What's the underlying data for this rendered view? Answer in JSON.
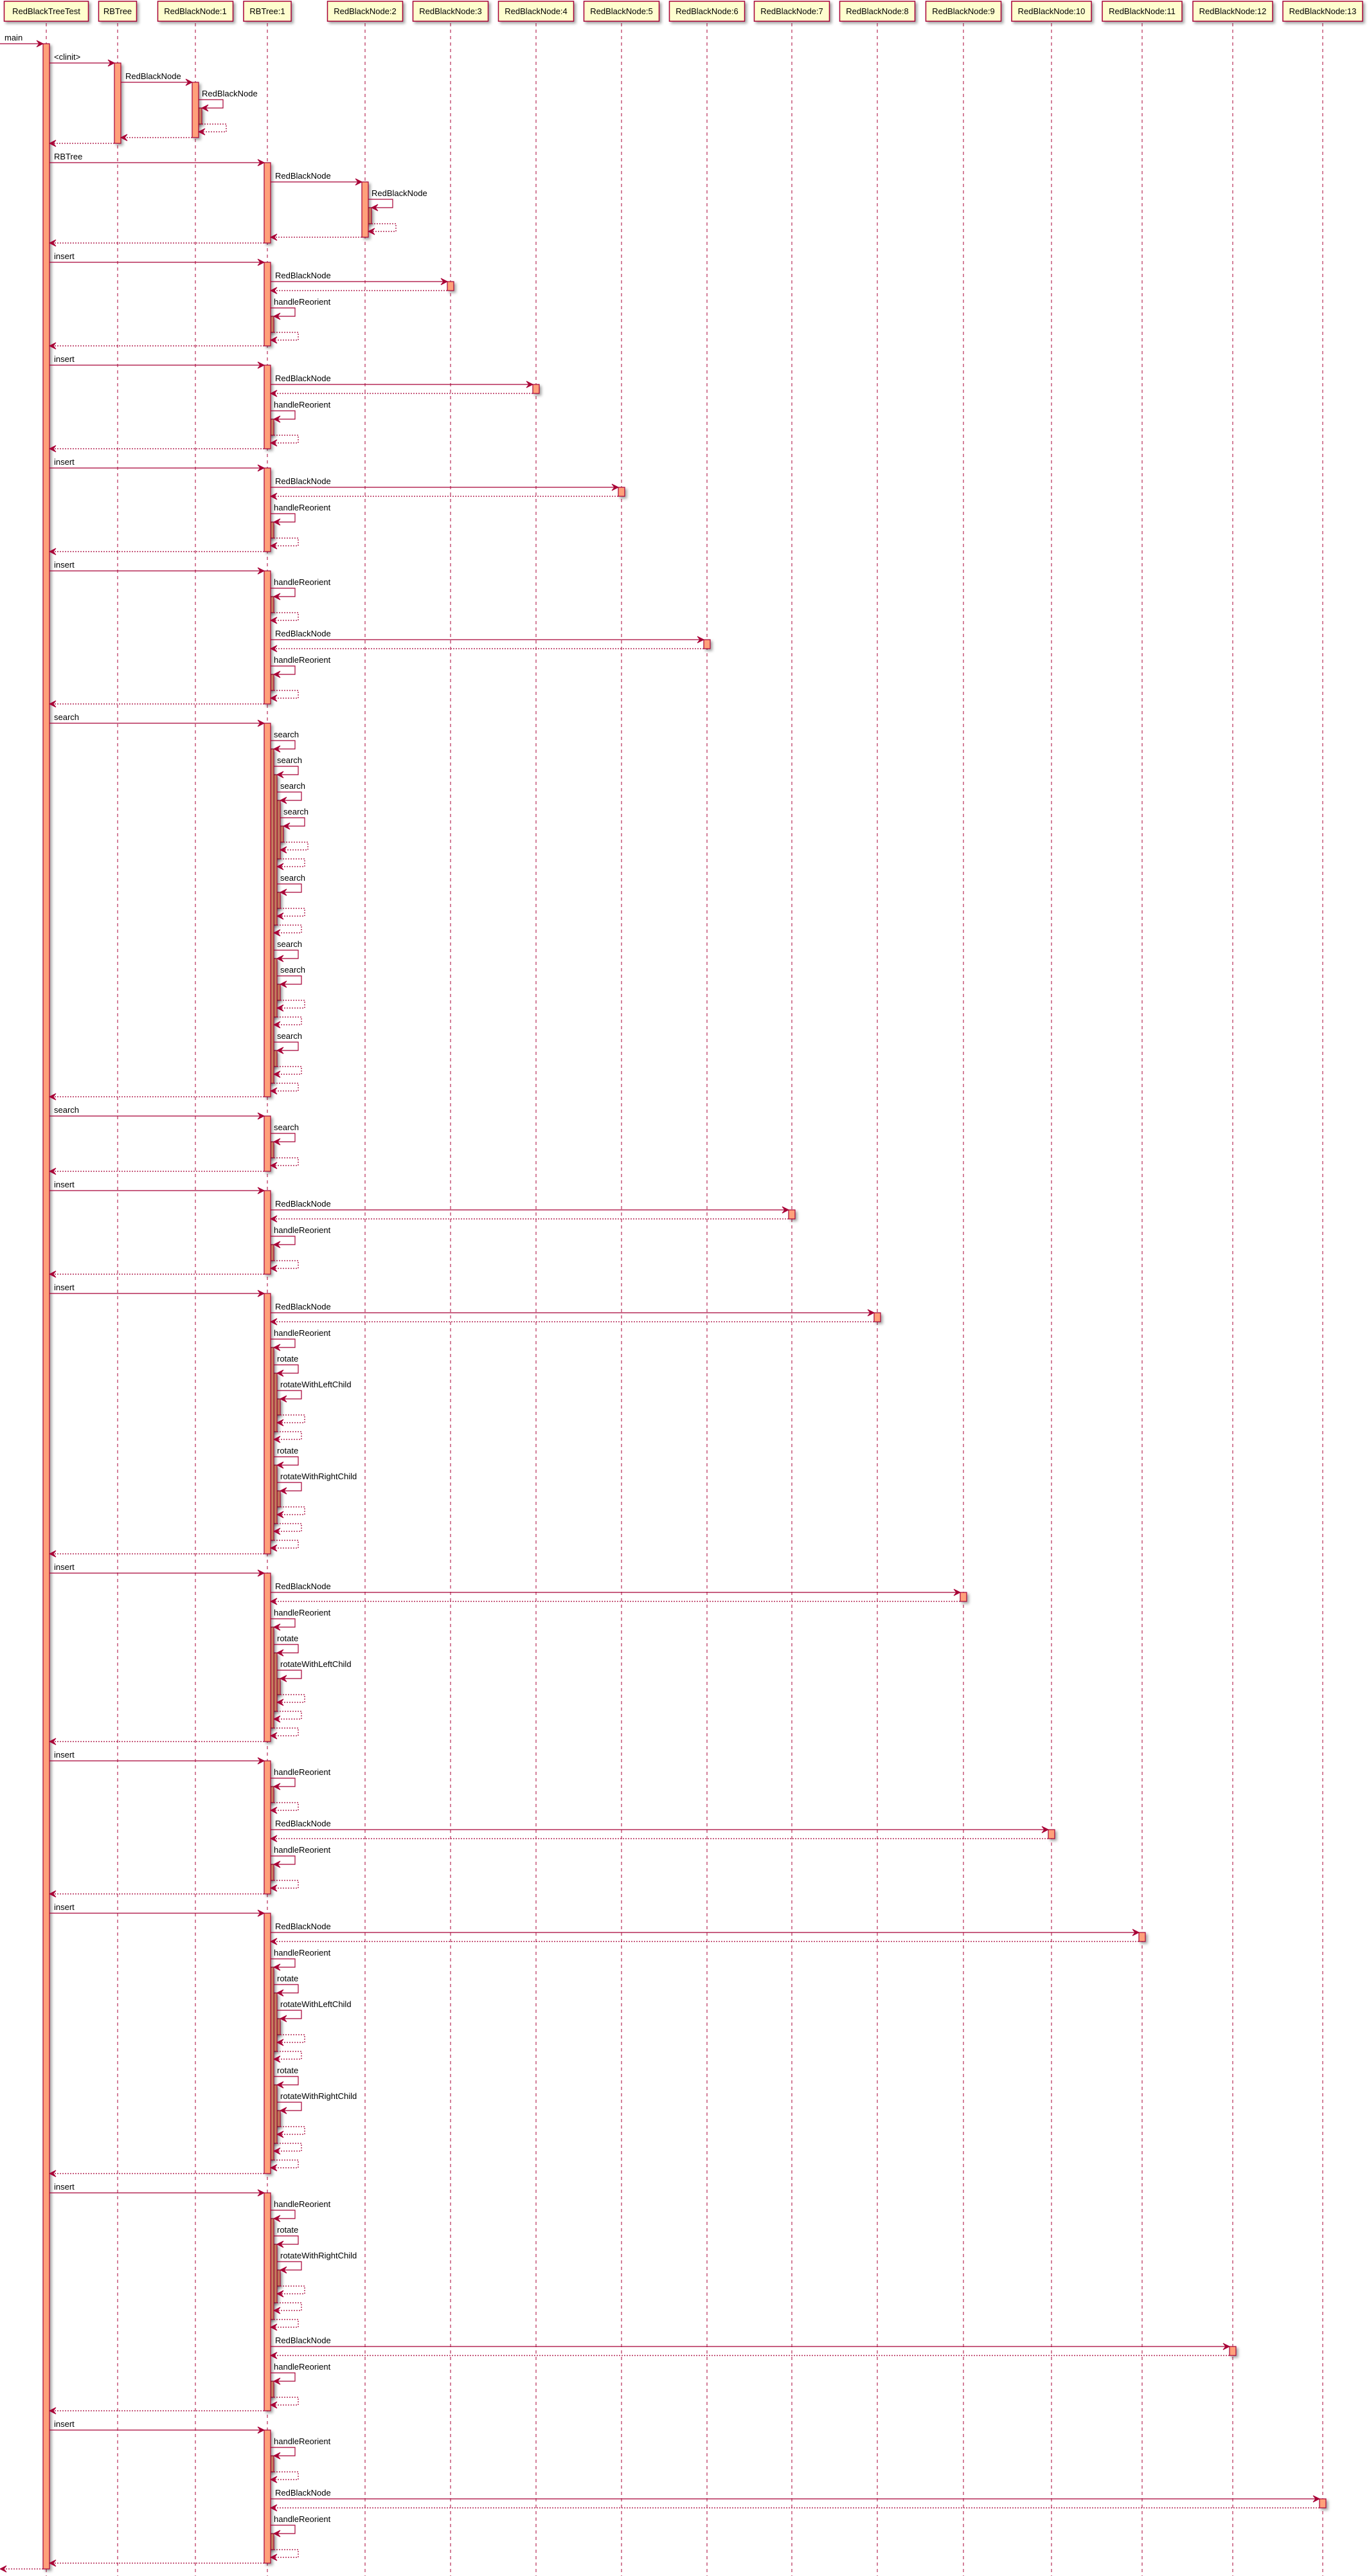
{
  "diagram": {
    "type": "sequence",
    "colors": {
      "line": "#A80036",
      "activation": "#FFA07A",
      "participant_fill": "#FEFECE"
    }
  },
  "participants": [
    "RedBlackTreeTest",
    "RBTree",
    "RedBlackNode:1",
    "RBTree:1",
    "RedBlackNode:2",
    "RedBlackNode:3",
    "RedBlackNode:4",
    "RedBlackNode:5",
    "RedBlackNode:6",
    "RedBlackNode:7",
    "RedBlackNode:8",
    "RedBlackNode:9",
    "RedBlackNode:10",
    "RedBlackNode:11",
    "RedBlackNode:12",
    "RedBlackNode:13"
  ],
  "messages": [
    {
      "f": -1,
      "t": 0,
      "l": "main",
      "c": [
        {
          "f": 0,
          "t": 1,
          "l": "<clinit>",
          "c": [
            {
              "f": 1,
              "t": 2,
              "l": "RedBlackNode",
              "c": [
                {
                  "f": 2,
                  "t": 2,
                  "l": "RedBlackNode",
                  "c": []
                }
              ]
            }
          ]
        },
        {
          "f": 0,
          "t": 3,
          "l": "RBTree",
          "c": [
            {
              "f": 3,
              "t": 4,
              "l": "RedBlackNode",
              "c": [
                {
                  "f": 4,
                  "t": 4,
                  "l": "RedBlackNode",
                  "c": []
                }
              ]
            }
          ]
        },
        {
          "f": 0,
          "t": 3,
          "l": "insert",
          "c": [
            {
              "f": 3,
              "t": 5,
              "l": "RedBlackNode",
              "c": []
            },
            {
              "f": 3,
              "t": 3,
              "l": "handleReorient",
              "c": []
            }
          ]
        },
        {
          "f": 0,
          "t": 3,
          "l": "insert",
          "c": [
            {
              "f": 3,
              "t": 6,
              "l": "RedBlackNode",
              "c": []
            },
            {
              "f": 3,
              "t": 3,
              "l": "handleReorient",
              "c": []
            }
          ]
        },
        {
          "f": 0,
          "t": 3,
          "l": "insert",
          "c": [
            {
              "f": 3,
              "t": 7,
              "l": "RedBlackNode",
              "c": []
            },
            {
              "f": 3,
              "t": 3,
              "l": "handleReorient",
              "c": []
            }
          ]
        },
        {
          "f": 0,
          "t": 3,
          "l": "insert",
          "c": [
            {
              "f": 3,
              "t": 3,
              "l": "handleReorient",
              "c": []
            },
            {
              "f": 3,
              "t": 8,
              "l": "RedBlackNode",
              "c": []
            },
            {
              "f": 3,
              "t": 3,
              "l": "handleReorient",
              "c": []
            }
          ]
        },
        {
          "f": 0,
          "t": 3,
          "l": "search",
          "c": [
            {
              "f": 3,
              "t": 3,
              "l": "search",
              "c": [
                {
                  "f": 3,
                  "t": 3,
                  "l": "search",
                  "c": [
                    {
                      "f": 3,
                      "t": 3,
                      "l": "search",
                      "c": [
                        {
                          "f": 3,
                          "t": 3,
                          "l": "search",
                          "c": []
                        }
                      ]
                    },
                    {
                      "f": 3,
                      "t": 3,
                      "l": "search",
                      "c": []
                    }
                  ]
                },
                {
                  "f": 3,
                  "t": 3,
                  "l": "search",
                  "c": [
                    {
                      "f": 3,
                      "t": 3,
                      "l": "search",
                      "c": []
                    }
                  ]
                },
                {
                  "f": 3,
                  "t": 3,
                  "l": "search",
                  "c": []
                }
              ]
            }
          ]
        },
        {
          "f": 0,
          "t": 3,
          "l": "search",
          "c": [
            {
              "f": 3,
              "t": 3,
              "l": "search",
              "c": []
            }
          ]
        },
        {
          "f": 0,
          "t": 3,
          "l": "insert",
          "c": [
            {
              "f": 3,
              "t": 9,
              "l": "RedBlackNode",
              "c": []
            },
            {
              "f": 3,
              "t": 3,
              "l": "handleReorient",
              "c": []
            }
          ]
        },
        {
          "f": 0,
          "t": 3,
          "l": "insert",
          "c": [
            {
              "f": 3,
              "t": 10,
              "l": "RedBlackNode",
              "c": []
            },
            {
              "f": 3,
              "t": 3,
              "l": "handleReorient",
              "c": [
                {
                  "f": 3,
                  "t": 3,
                  "l": "rotate",
                  "c": [
                    {
                      "f": 3,
                      "t": 3,
                      "l": "rotateWithLeftChild",
                      "c": []
                    }
                  ]
                },
                {
                  "f": 3,
                  "t": 3,
                  "l": "rotate",
                  "c": [
                    {
                      "f": 3,
                      "t": 3,
                      "l": "rotateWithRightChild",
                      "c": []
                    }
                  ]
                }
              ]
            }
          ]
        },
        {
          "f": 0,
          "t": 3,
          "l": "insert",
          "c": [
            {
              "f": 3,
              "t": 11,
              "l": "RedBlackNode",
              "c": []
            },
            {
              "f": 3,
              "t": 3,
              "l": "handleReorient",
              "c": [
                {
                  "f": 3,
                  "t": 3,
                  "l": "rotate",
                  "c": [
                    {
                      "f": 3,
                      "t": 3,
                      "l": "rotateWithLeftChild",
                      "c": []
                    }
                  ]
                }
              ]
            }
          ]
        },
        {
          "f": 0,
          "t": 3,
          "l": "insert",
          "c": [
            {
              "f": 3,
              "t": 3,
              "l": "handleReorient",
              "c": []
            },
            {
              "f": 3,
              "t": 12,
              "l": "RedBlackNode",
              "c": []
            },
            {
              "f": 3,
              "t": 3,
              "l": "handleReorient",
              "c": []
            }
          ]
        },
        {
          "f": 0,
          "t": 3,
          "l": "insert",
          "c": [
            {
              "f": 3,
              "t": 13,
              "l": "RedBlackNode",
              "c": []
            },
            {
              "f": 3,
              "t": 3,
              "l": "handleReorient",
              "c": [
                {
                  "f": 3,
                  "t": 3,
                  "l": "rotate",
                  "c": [
                    {
                      "f": 3,
                      "t": 3,
                      "l": "rotateWithLeftChild",
                      "c": []
                    }
                  ]
                },
                {
                  "f": 3,
                  "t": 3,
                  "l": "rotate",
                  "c": [
                    {
                      "f": 3,
                      "t": 3,
                      "l": "rotateWithRightChild",
                      "c": []
                    }
                  ]
                }
              ]
            }
          ]
        },
        {
          "f": 0,
          "t": 3,
          "l": "insert",
          "c": [
            {
              "f": 3,
              "t": 3,
              "l": "handleReorient",
              "c": [
                {
                  "f": 3,
                  "t": 3,
                  "l": "rotate",
                  "c": [
                    {
                      "f": 3,
                      "t": 3,
                      "l": "rotateWithRightChild",
                      "c": []
                    }
                  ]
                }
              ]
            },
            {
              "f": 3,
              "t": 14,
              "l": "RedBlackNode",
              "c": []
            },
            {
              "f": 3,
              "t": 3,
              "l": "handleReorient",
              "c": []
            }
          ]
        },
        {
          "f": 0,
          "t": 3,
          "l": "insert",
          "c": [
            {
              "f": 3,
              "t": 3,
              "l": "handleReorient",
              "c": []
            },
            {
              "f": 3,
              "t": 15,
              "l": "RedBlackNode",
              "c": []
            },
            {
              "f": 3,
              "t": 3,
              "l": "handleReorient",
              "c": []
            }
          ]
        }
      ]
    }
  ]
}
